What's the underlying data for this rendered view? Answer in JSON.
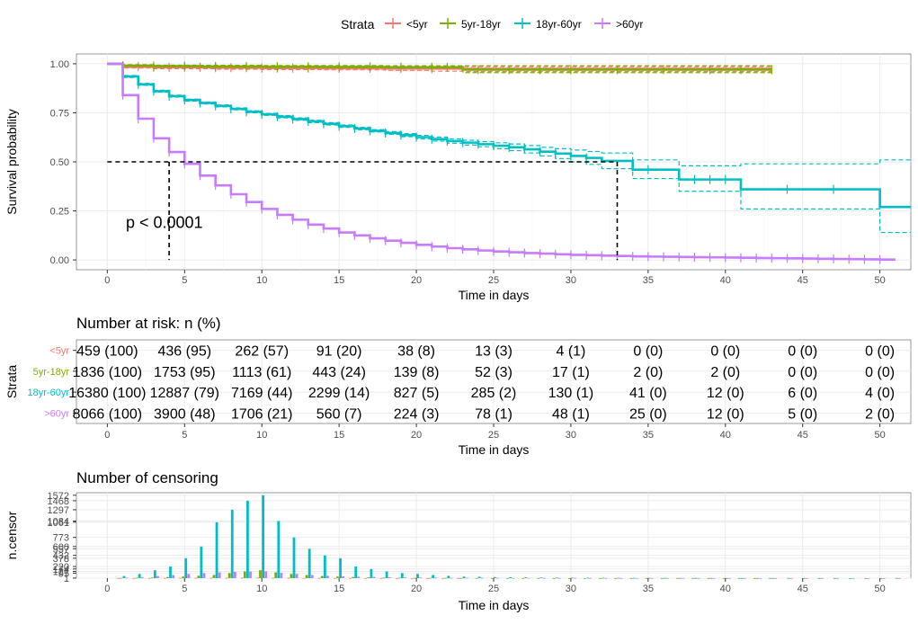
{
  "legend": {
    "title": "Strata",
    "entries": [
      "<5yr",
      "5yr-18yr",
      "18yr-60yr",
      ">60yr"
    ],
    "position": "top"
  },
  "colors": {
    "<5yr": "#F8766D",
    "5yr-18yr": "#7CAE00",
    "18yr-60yr": "#00BFC4",
    ">60yr": "#C77CFF",
    "median_line": "#000000",
    "grid": "#ebebeb"
  },
  "chart_data": [
    {
      "type": "line",
      "name": "survival",
      "xlabel": "Time in days",
      "ylabel": "Survival probability",
      "xlim": [
        -2,
        52
      ],
      "ylim": [
        -0.05,
        1.05
      ],
      "xticks": [
        0,
        5,
        10,
        15,
        20,
        25,
        30,
        35,
        40,
        45,
        50
      ],
      "yticks": [
        0.0,
        0.25,
        0.5,
        0.75,
        1.0
      ],
      "ytick_labels": [
        "0.00",
        "0.25",
        "0.50",
        "0.75",
        "1.00"
      ],
      "grid": true,
      "annotation": "p < 0.0001",
      "annotation_pos": [
        1.2,
        0.2
      ],
      "median_lines": {
        "y": 0.5,
        "x_points": [
          4,
          33
        ]
      },
      "series": [
        {
          "name": "<5yr",
          "x": [
            0,
            1,
            3,
            7,
            10,
            14,
            18,
            21,
            23,
            43
          ],
          "y": [
            1.0,
            0.985,
            0.982,
            0.98,
            0.978,
            0.977,
            0.976,
            0.975,
            0.974,
            0.974
          ],
          "ci_lower": [
            1.0,
            0.978,
            0.975,
            0.972,
            0.97,
            0.969,
            0.966,
            0.962,
            0.96,
            0.96
          ],
          "ci_upper": [
            1.0,
            0.995,
            0.99,
            0.988,
            0.987,
            0.986,
            0.985,
            0.985,
            0.985,
            0.985
          ],
          "censor_x": [
            1,
            2,
            3,
            4,
            5,
            6,
            7,
            8,
            9,
            10,
            11,
            12,
            13,
            15,
            17,
            19,
            21
          ]
        },
        {
          "name": "5yr-18yr",
          "x": [
            0,
            1,
            3,
            6,
            10,
            14,
            18,
            23,
            43
          ],
          "y": [
            1.0,
            0.99,
            0.988,
            0.986,
            0.985,
            0.984,
            0.982,
            0.97,
            0.97
          ],
          "ci_lower": [
            1.0,
            0.985,
            0.983,
            0.98,
            0.978,
            0.976,
            0.973,
            0.955,
            0.955
          ],
          "ci_upper": [
            1.0,
            0.995,
            0.993,
            0.992,
            0.991,
            0.991,
            0.99,
            0.99,
            0.99
          ],
          "censor_x": [
            1,
            3,
            5,
            7,
            9,
            11,
            13,
            15,
            17,
            19,
            21,
            22,
            24,
            26,
            28,
            30,
            33,
            36,
            39,
            41,
            43
          ]
        },
        {
          "name": "18yr-60yr",
          "x": [
            0,
            1,
            2,
            3,
            4,
            5,
            6,
            7,
            8,
            9,
            10,
            11,
            12,
            13,
            14,
            15,
            16,
            17,
            18,
            19,
            20,
            21,
            22,
            23,
            24,
            25,
            26,
            27,
            28,
            29,
            30,
            31,
            32,
            34,
            37,
            41,
            46,
            50,
            52
          ],
          "y": [
            1.0,
            0.935,
            0.895,
            0.86,
            0.835,
            0.815,
            0.8,
            0.785,
            0.77,
            0.755,
            0.742,
            0.73,
            0.718,
            0.706,
            0.694,
            0.682,
            0.67,
            0.658,
            0.647,
            0.636,
            0.626,
            0.616,
            0.606,
            0.598,
            0.59,
            0.582,
            0.574,
            0.564,
            0.552,
            0.542,
            0.53,
            0.52,
            0.505,
            0.46,
            0.41,
            0.36,
            0.36,
            0.27,
            0.27
          ],
          "ci_lower": [
            1.0,
            0.93,
            0.89,
            0.855,
            0.83,
            0.81,
            0.795,
            0.78,
            0.765,
            0.75,
            0.737,
            0.724,
            0.712,
            0.7,
            0.688,
            0.676,
            0.664,
            0.652,
            0.64,
            0.628,
            0.617,
            0.606,
            0.595,
            0.586,
            0.577,
            0.567,
            0.557,
            0.545,
            0.53,
            0.517,
            0.5,
            0.487,
            0.465,
            0.415,
            0.35,
            0.26,
            0.26,
            0.14,
            0.14
          ],
          "ci_upper": [
            1.0,
            0.94,
            0.9,
            0.865,
            0.84,
            0.82,
            0.805,
            0.79,
            0.775,
            0.76,
            0.747,
            0.736,
            0.724,
            0.712,
            0.7,
            0.688,
            0.676,
            0.664,
            0.654,
            0.644,
            0.635,
            0.626,
            0.617,
            0.61,
            0.603,
            0.597,
            0.591,
            0.583,
            0.574,
            0.567,
            0.56,
            0.553,
            0.545,
            0.51,
            0.48,
            0.49,
            0.49,
            0.51,
            0.51
          ],
          "censor_x": [
            1,
            2,
            3,
            4,
            5,
            6,
            7,
            8,
            9,
            10,
            11,
            12,
            13,
            14,
            15,
            16,
            17,
            18,
            19,
            20,
            21,
            22,
            23,
            24,
            25,
            26,
            27,
            28,
            29,
            30,
            31,
            35,
            38,
            39,
            40,
            41,
            44,
            47
          ]
        },
        {
          "name": ">60yr",
          "x": [
            0,
            1,
            2,
            3,
            4,
            5,
            6,
            7,
            8,
            9,
            10,
            11,
            12,
            13,
            14,
            15,
            16,
            17,
            18,
            19,
            20,
            21,
            22,
            23,
            24,
            25,
            26,
            27,
            28,
            29,
            30,
            31,
            32,
            33,
            34,
            35,
            36,
            37,
            38,
            39,
            40,
            41,
            42,
            43,
            44,
            45,
            46,
            47,
            48,
            49,
            50,
            51
          ],
          "y": [
            1.0,
            0.84,
            0.72,
            0.62,
            0.55,
            0.49,
            0.43,
            0.38,
            0.335,
            0.295,
            0.26,
            0.23,
            0.205,
            0.18,
            0.16,
            0.14,
            0.125,
            0.11,
            0.098,
            0.087,
            0.077,
            0.068,
            0.06,
            0.054,
            0.048,
            0.043,
            0.039,
            0.035,
            0.032,
            0.029,
            0.026,
            0.024,
            0.022,
            0.02,
            0.018,
            0.017,
            0.016,
            0.015,
            0.014,
            0.013,
            0.012,
            0.011,
            0.01,
            0.009,
            0.008,
            0.007,
            0.006,
            0.005,
            0.004,
            0.003,
            0.002,
            0.002
          ],
          "censor_x": [
            1,
            2,
            3,
            4,
            5,
            6,
            7,
            8,
            9,
            10,
            11,
            12,
            13,
            14,
            15,
            16,
            17,
            18,
            19,
            20,
            21,
            22,
            23,
            24,
            25,
            26,
            27,
            28,
            29,
            30,
            31,
            32,
            33,
            34,
            35,
            36,
            37,
            38,
            39,
            40,
            41,
            42,
            43,
            44,
            45,
            46,
            47,
            48,
            49,
            50
          ]
        }
      ]
    },
    {
      "type": "table",
      "name": "risk-table",
      "title": "Number at risk: n (%)",
      "xlabel": "Time in days",
      "ylabel": "Strata",
      "xticks": [
        0,
        5,
        10,
        15,
        20,
        25,
        30,
        35,
        40,
        45,
        50
      ],
      "rows": [
        {
          "name": "<5yr",
          "values": [
            "459 (100)",
            "436 (95)",
            "262 (57)",
            "91 (20)",
            "38 (8)",
            "13 (3)",
            "4 (1)",
            "0 (0)",
            "0 (0)",
            "0 (0)",
            "0 (0)"
          ]
        },
        {
          "name": "5yr-18yr",
          "values": [
            "1836 (100)",
            "1753 (95)",
            "1113 (61)",
            "443 (24)",
            "139 (8)",
            "52 (3)",
            "17 (1)",
            "2 (0)",
            "2 (0)",
            "0 (0)",
            "0 (0)"
          ]
        },
        {
          "name": "18yr-60yr",
          "values": [
            "16380 (100)",
            "12887 (79)",
            "7169 (44)",
            "2299 (14)",
            "827 (5)",
            "285 (2)",
            "130 (1)",
            "41 (0)",
            "12 (0)",
            "6 (0)",
            "4 (0)"
          ]
        },
        {
          "name": ">60yr",
          "values": [
            "8066 (100)",
            "3900 (48)",
            "1706 (21)",
            "560 (7)",
            "224 (3)",
            "78 (1)",
            "48 (1)",
            "25 (0)",
            "12 (0)",
            "5 (0)",
            "2 (0)"
          ]
        }
      ]
    },
    {
      "type": "bar",
      "name": "censoring",
      "title": "Number of censoring",
      "xlabel": "Time in days",
      "ylabel": "n.censor",
      "xticks": [
        0,
        5,
        10,
        15,
        20,
        25,
        30,
        35,
        40,
        45,
        50
      ],
      "ylim": [
        0,
        1620
      ],
      "ytick_labels": [
        "1572",
        "1468",
        "1297",
        "1084",
        "1061",
        "773",
        "600",
        "557",
        "432",
        "378",
        "220",
        "174",
        "127",
        "95",
        "1"
      ],
      "ytick_values": [
        1572,
        1468,
        1297,
        1084,
        1061,
        773,
        600,
        557,
        432,
        378,
        220,
        174,
        127,
        95,
        1
      ],
      "x": [
        0,
        1,
        2,
        3,
        4,
        5,
        6,
        7,
        8,
        9,
        10,
        11,
        12,
        13,
        14,
        15,
        16,
        17,
        18,
        19,
        20,
        21,
        22,
        23,
        24,
        25,
        26,
        27,
        28,
        29,
        30,
        31,
        32,
        33,
        34,
        35,
        36,
        37,
        38,
        39,
        40,
        41,
        42,
        43,
        44,
        45,
        46,
        47,
        48,
        49,
        50,
        51
      ],
      "series": [
        {
          "name": "<5yr",
          "values": [
            0,
            2,
            2,
            3,
            3,
            4,
            5,
            6,
            7,
            8,
            9,
            6,
            5,
            4,
            3,
            3,
            2,
            2,
            2,
            1,
            1,
            1,
            1,
            1,
            0,
            0,
            0,
            0,
            0,
            0,
            0,
            0,
            0,
            0,
            0,
            0,
            0,
            0,
            0,
            0,
            0,
            0,
            0,
            0,
            0,
            0,
            0,
            0,
            0,
            0,
            0,
            0
          ]
        },
        {
          "name": "5yr-18yr",
          "values": [
            0,
            5,
            8,
            12,
            20,
            30,
            45,
            60,
            95,
            127,
            150,
            110,
            80,
            60,
            40,
            30,
            22,
            15,
            10,
            8,
            6,
            5,
            4,
            3,
            3,
            2,
            2,
            2,
            1,
            1,
            1,
            1,
            1,
            1,
            1,
            1,
            1,
            1,
            1,
            1,
            1,
            1,
            1,
            1,
            0,
            0,
            0,
            0,
            0,
            0,
            0,
            0
          ]
        },
        {
          "name": "18yr-60yr",
          "values": [
            0,
            40,
            80,
            150,
            220,
            378,
            600,
            1061,
            1297,
            1468,
            1572,
            1084,
            773,
            557,
            432,
            378,
            220,
            174,
            127,
            95,
            80,
            60,
            45,
            30,
            25,
            20,
            18,
            15,
            12,
            10,
            9,
            8,
            7,
            6,
            5,
            5,
            4,
            4,
            3,
            3,
            3,
            2,
            2,
            2,
            2,
            1,
            1,
            1,
            1,
            1,
            1,
            1
          ]
        },
        {
          "name": ">60yr",
          "values": [
            0,
            10,
            20,
            40,
            60,
            80,
            95,
            110,
            120,
            127,
            130,
            100,
            80,
            60,
            45,
            35,
            28,
            22,
            18,
            15,
            12,
            10,
            9,
            8,
            7,
            6,
            5,
            5,
            4,
            4,
            3,
            3,
            3,
            2,
            2,
            2,
            2,
            2,
            2,
            2,
            1,
            1,
            1,
            1,
            1,
            1,
            1,
            1,
            1,
            1,
            1,
            1
          ]
        }
      ]
    }
  ]
}
